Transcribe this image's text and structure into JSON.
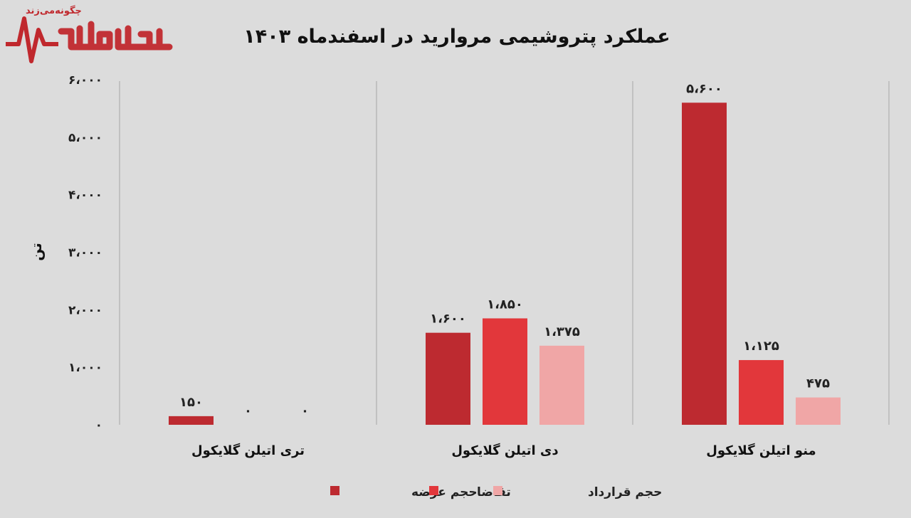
{
  "logo": {
    "tagline": "چگونه‌می‌زند",
    "name": "بورس بازار"
  },
  "chart_data": {
    "type": "bar",
    "title": "عملکرد پتروشیمی مروارید در اسفندماه ۱۴۰۳",
    "ylabel": "تن",
    "xlabel": "",
    "ylim": [
      0,
      6000
    ],
    "yticks": [
      0,
      1000,
      2000,
      3000,
      4000,
      5000,
      6000
    ],
    "ytick_labels": [
      "۰",
      "۱،۰۰۰",
      "۲،۰۰۰",
      "۳،۰۰۰",
      "۴،۰۰۰",
      "۵،۰۰۰",
      "۶،۰۰۰"
    ],
    "grid": false,
    "legend_position": "bottom",
    "categories": [
      "تری اتیلن گلایکول",
      "دی اتیلن گلایکول",
      "منو اتیلن گلایکول"
    ],
    "series": [
      {
        "name": "حجم عرضه",
        "color": "#bd2a30",
        "values": [
          150,
          1600,
          5600
        ],
        "labels": [
          "۱۵۰",
          "۱،۶۰۰",
          "۵،۶۰۰"
        ]
      },
      {
        "name": "تقاضا",
        "color": "#e2373b",
        "values": [
          0,
          1850,
          1125
        ],
        "labels": [
          "۰",
          "۱،۸۵۰",
          "۱،۱۲۵"
        ]
      },
      {
        "name": "حجم قرارداد",
        "color": "#f0a6a6",
        "values": [
          0,
          1375,
          475
        ],
        "labels": [
          "۰",
          "۱،۳۷۵",
          "۴۷۵"
        ]
      }
    ]
  }
}
